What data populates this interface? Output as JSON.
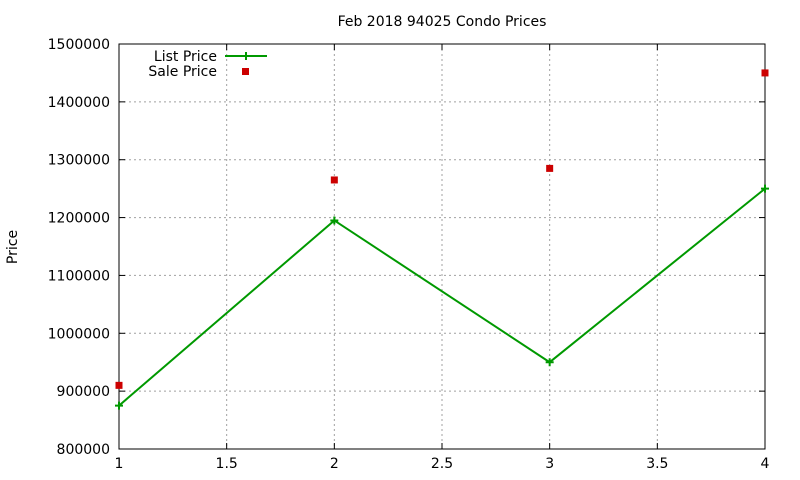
{
  "chart_data": {
    "type": "line",
    "title": "Feb 2018 94025 Condo Prices",
    "xlabel": "",
    "ylabel": "Price",
    "xlim": [
      1,
      4
    ],
    "ylim": [
      800000,
      1500000
    ],
    "x_ticks": [
      "1",
      "1.5",
      "2",
      "2.5",
      "3",
      "3.5",
      "4"
    ],
    "y_ticks": [
      "800000",
      "900000",
      "1000000",
      "1100000",
      "1200000",
      "1300000",
      "1400000",
      "1500000"
    ],
    "grid": true,
    "legend_position": "top-left",
    "series": [
      {
        "name": "List Price",
        "style": "line-with-plus-markers",
        "color": "#009900",
        "x": [
          1,
          2,
          3,
          4
        ],
        "values": [
          875000,
          1195000,
          950000,
          1250000
        ]
      },
      {
        "name": "Sale Price",
        "style": "square-markers",
        "color": "#cc0000",
        "x": [
          1,
          2,
          3,
          4
        ],
        "values": [
          910000,
          1265000,
          1285000,
          1450000
        ]
      }
    ]
  }
}
